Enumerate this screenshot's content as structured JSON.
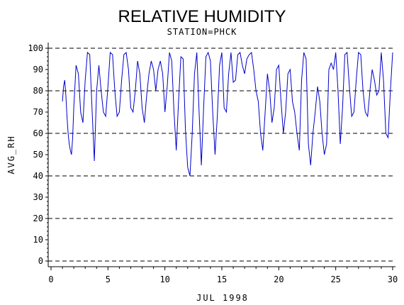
{
  "chart_data": {
    "type": "line",
    "title": "RELATIVE HUMIDITY",
    "subtitle": "STATION=PHCK",
    "xlabel": "JUL 1998",
    "ylabel": "AVG_RH",
    "xlim": [
      0,
      30
    ],
    "ylim": [
      0,
      100
    ],
    "x_ticks": [
      0,
      5,
      10,
      15,
      20,
      25,
      30
    ],
    "y_ticks": [
      0,
      10,
      20,
      30,
      40,
      50,
      60,
      70,
      80,
      90,
      100
    ],
    "y_gridlines": [
      0,
      20,
      40,
      60,
      80,
      100
    ],
    "grid": "dashed horizontal at 0, 20, 40, 60, 80, 100",
    "legend": "none",
    "series": [
      {
        "color": "#0000cc",
        "x": [
          1.0,
          1.1,
          1.2,
          1.3,
          1.4,
          1.5,
          1.6,
          1.7,
          1.8,
          1.9,
          2.0,
          2.2,
          2.4,
          2.6,
          2.8,
          3.0,
          3.2,
          3.4,
          3.6,
          3.8,
          4.0,
          4.2,
          4.4,
          4.6,
          4.8,
          5.0,
          5.2,
          5.4,
          5.6,
          5.8,
          6.0,
          6.2,
          6.4,
          6.6,
          6.8,
          7.0,
          7.2,
          7.4,
          7.6,
          7.8,
          8.0,
          8.2,
          8.4,
          8.6,
          8.8,
          9.0,
          9.2,
          9.4,
          9.6,
          9.8,
          10.0,
          10.2,
          10.4,
          10.6,
          10.8,
          11.0,
          11.2,
          11.4,
          11.6,
          11.8,
          12.0,
          12.2,
          12.4,
          12.6,
          12.8,
          13.0,
          13.2,
          13.4,
          13.6,
          13.8,
          14.0,
          14.2,
          14.4,
          14.6,
          14.8,
          15.0,
          15.2,
          15.4,
          15.6,
          15.8,
          16.0,
          16.2,
          16.4,
          16.6,
          16.8,
          17.0,
          17.2,
          17.4,
          17.6,
          17.8,
          18.0,
          18.2,
          18.4,
          18.6,
          18.8,
          19.0,
          19.2,
          19.4,
          19.6,
          19.8,
          20.0,
          20.2,
          20.4,
          20.6,
          20.8,
          21.0,
          21.2,
          21.4,
          21.6,
          21.8,
          22.0,
          22.2,
          22.4,
          22.6,
          22.8,
          23.0,
          23.2,
          23.4,
          23.6,
          23.8,
          24.0,
          24.2,
          24.4,
          24.6,
          24.8,
          25.0,
          25.2,
          25.4,
          25.6,
          25.8,
          26.0,
          26.2,
          26.4,
          26.6,
          26.8,
          27.0,
          27.2,
          27.4,
          27.6,
          27.8,
          28.0,
          28.2,
          28.4,
          28.6,
          28.8,
          29.0,
          29.2,
          29.4,
          29.6,
          29.8,
          30.0
        ],
        "y": [
          75,
          82,
          85,
          78,
          68,
          60,
          55,
          52,
          50,
          58,
          72,
          92,
          88,
          70,
          65,
          85,
          98,
          97,
          72,
          47,
          80,
          92,
          80,
          70,
          68,
          82,
          98,
          97,
          80,
          68,
          70,
          85,
          97,
          98,
          90,
          72,
          70,
          80,
          94,
          88,
          72,
          65,
          78,
          88,
          94,
          90,
          80,
          90,
          94,
          88,
          70,
          82,
          98,
          94,
          70,
          52,
          75,
          96,
          95,
          62,
          44,
          40,
          60,
          88,
          98,
          70,
          45,
          72,
          96,
          98,
          94,
          70,
          50,
          68,
          92,
          98,
          72,
          70,
          88,
          98,
          84,
          85,
          97,
          98,
          92,
          88,
          95,
          97,
          98,
          90,
          80,
          75,
          60,
          52,
          70,
          88,
          80,
          65,
          72,
          90,
          92,
          75,
          60,
          70,
          88,
          90,
          75,
          70,
          60,
          52,
          85,
          98,
          95,
          55,
          45,
          60,
          70,
          82,
          75,
          60,
          50,
          55,
          90,
          93,
          90,
          98,
          80,
          55,
          72,
          97,
          98,
          82,
          68,
          70,
          85,
          98,
          97,
          80,
          70,
          68,
          80,
          90,
          85,
          78,
          80,
          98,
          85,
          60,
          58,
          80,
          98
        ]
      }
    ]
  }
}
